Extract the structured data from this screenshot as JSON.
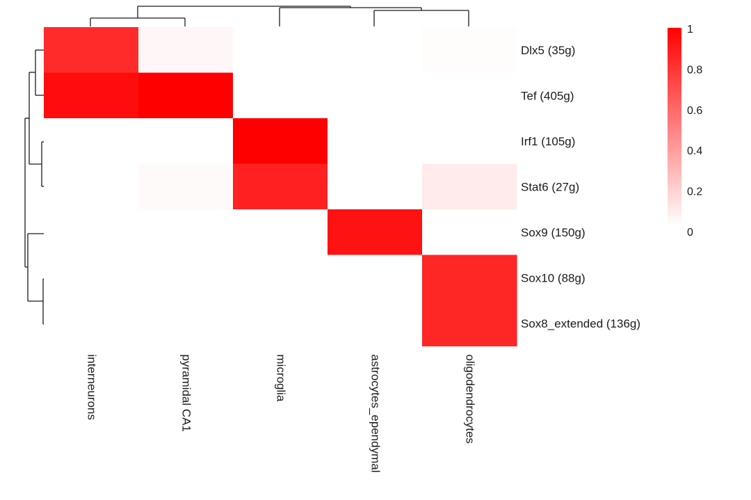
{
  "chart_data": {
    "type": "heatmap",
    "rows": [
      "Dlx5 (35g)",
      "Tef (405g)",
      "Irf1 (105g)",
      "Stat6 (27g)",
      "Sox9 (150g)",
      "Sox10 (88g)",
      "Sox8_extended (136g)"
    ],
    "columns": [
      "interneurons",
      "pyramidal CA1",
      "microglia",
      "astrocytes_ependymal",
      "oligodendrocytes"
    ],
    "values": [
      [
        0.83,
        0.03,
        0.0,
        0.0,
        0.01
      ],
      [
        0.95,
        1.0,
        0.0,
        0.0,
        0.0
      ],
      [
        0.0,
        0.0,
        1.0,
        0.0,
        0.0
      ],
      [
        0.0,
        0.02,
        0.87,
        0.0,
        0.08
      ],
      [
        0.0,
        0.0,
        0.0,
        0.93,
        0.0
      ],
      [
        0.0,
        0.0,
        0.0,
        0.0,
        0.85
      ],
      [
        0.0,
        0.0,
        0.0,
        0.0,
        0.85
      ]
    ],
    "color_scale": {
      "low": "#ffffff",
      "high": "#ff0000",
      "range": [
        0,
        1
      ],
      "ticks": [
        "1",
        "0.8",
        "0.6",
        "0.4",
        "0.2",
        "0"
      ]
    },
    "row_dendrogram": true,
    "column_dendrogram": true,
    "legend_position": "top-right"
  }
}
